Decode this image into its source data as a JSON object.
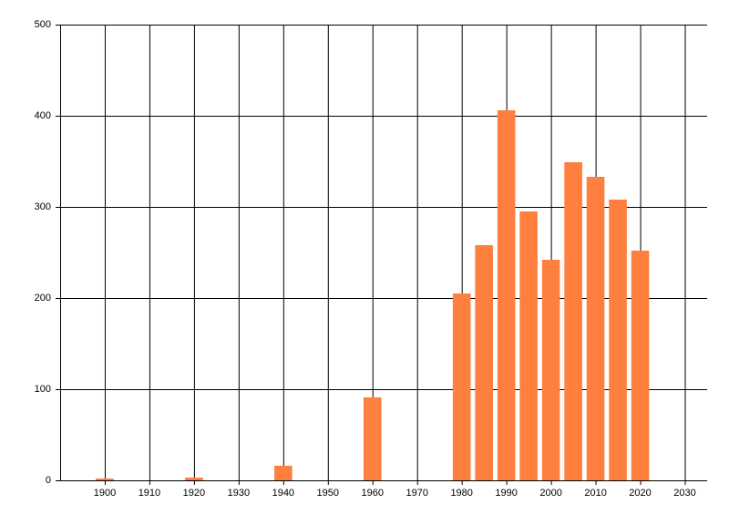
{
  "chart_data": {
    "type": "bar",
    "x": [
      1900,
      1920,
      1940,
      1960,
      1980,
      1985,
      1990,
      1995,
      2000,
      2005,
      2010,
      2015,
      2020
    ],
    "values": [
      2,
      3,
      16,
      91,
      205,
      258,
      406,
      295,
      242,
      349,
      333,
      308,
      252
    ],
    "color": "#ff7f3f",
    "xlim": [
      1890,
      2035
    ],
    "xticks": [
      1900,
      1910,
      1920,
      1930,
      1940,
      1950,
      1960,
      1970,
      1980,
      1990,
      2000,
      2010,
      2020,
      2030
    ],
    "ylim": [
      0,
      500
    ],
    "yticks": [
      0,
      100,
      200,
      300,
      400,
      500
    ],
    "grid": true
  }
}
